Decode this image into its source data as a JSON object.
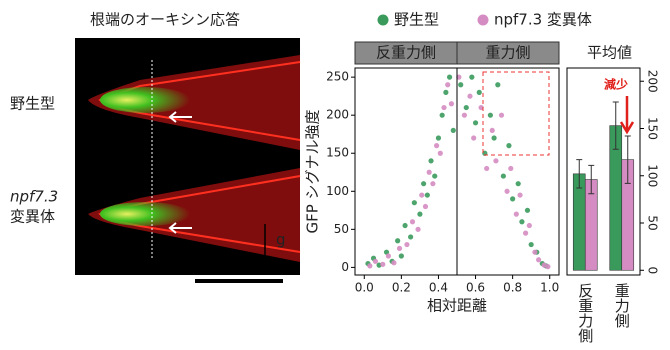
{
  "image_panel": {
    "title": "根端のオーキシン応答",
    "wild_label": "野生型",
    "mutant_label": [
      "npf7.3",
      "変異体"
    ],
    "gravity_label": "g"
  },
  "chart_data": [
    {
      "type": "scatter",
      "x_label": "相対距離",
      "y_label": "GFP シグナル強度",
      "panel_labels": [
        "反重力側",
        "重力側"
      ],
      "xlim": [
        -0.05,
        1.05
      ],
      "ylim": [
        -10,
        262
      ],
      "xticks": [
        {
          "value": 0,
          "label": "0.0"
        },
        {
          "value": 0.2,
          "label": "0.2"
        },
        {
          "value": 0.4,
          "label": "0.4"
        },
        {
          "value": 0.6,
          "label": "0.6"
        },
        {
          "value": 0.8,
          "label": "0.8"
        },
        {
          "value": 1,
          "label": "1.0"
        }
      ],
      "yticks": [
        0,
        50,
        100,
        150,
        200,
        250
      ],
      "series": [
        {
          "name": "野生型",
          "color": "#3a9a5c",
          "x": [
            0.02,
            0.05,
            0.08,
            0.12,
            0.15,
            0.18,
            0.2,
            0.22,
            0.25,
            0.27,
            0.3,
            0.32,
            0.34,
            0.36,
            0.38,
            0.4,
            0.42,
            0.44,
            0.46,
            0.48,
            0.52,
            0.55,
            0.58,
            0.6,
            0.62,
            0.65,
            0.68,
            0.7,
            0.72,
            0.75,
            0.78,
            0.8,
            0.83,
            0.85,
            0.88,
            0.9,
            0.93,
            0.96,
            0.98
          ],
          "values": [
            5,
            12,
            3,
            20,
            8,
            35,
            15,
            55,
            40,
            85,
            70,
            110,
            95,
            140,
            120,
            170,
            200,
            230,
            250,
            180,
            240,
            210,
            250,
            190,
            230,
            150,
            200,
            170,
            240,
            120,
            160,
            90,
            110,
            60,
            75,
            30,
            20,
            5,
            2
          ]
        },
        {
          "name": "npf7.3 変異体",
          "color": "#d58cc2",
          "x": [
            0.03,
            0.06,
            0.1,
            0.13,
            0.16,
            0.19,
            0.23,
            0.26,
            0.29,
            0.31,
            0.33,
            0.35,
            0.37,
            0.39,
            0.41,
            0.43,
            0.45,
            0.47,
            0.51,
            0.54,
            0.57,
            0.59,
            0.63,
            0.66,
            0.69,
            0.71,
            0.74,
            0.77,
            0.79,
            0.82,
            0.84,
            0.87,
            0.89,
            0.92,
            0.94,
            0.97,
            0.99
          ],
          "values": [
            2,
            8,
            4,
            15,
            6,
            25,
            30,
            60,
            50,
            95,
            80,
            125,
            110,
            160,
            150,
            210,
            240,
            215,
            250,
            200,
            225,
            170,
            210,
            130,
            180,
            140,
            200,
            100,
            130,
            70,
            95,
            45,
            55,
            20,
            10,
            3,
            1
          ]
        }
      ]
    },
    {
      "type": "bar",
      "title": "平均値",
      "annotation": "減少",
      "categories": [
        "反重力側",
        "重力側"
      ],
      "y2lim": [
        -5,
        214
      ],
      "y2ticks": [
        0,
        50,
        100,
        150,
        200
      ],
      "series": [
        {
          "name": "野生型",
          "color": "#3a9a5c",
          "axis": "y2",
          "values": [
            102,
            153
          ],
          "errors": [
            15,
            25
          ]
        },
        {
          "name": "npf7.3 変異体",
          "color": "#d58cc2",
          "axis": "y2",
          "values": [
            96,
            117
          ],
          "errors": [
            15,
            25
          ]
        }
      ]
    }
  ]
}
